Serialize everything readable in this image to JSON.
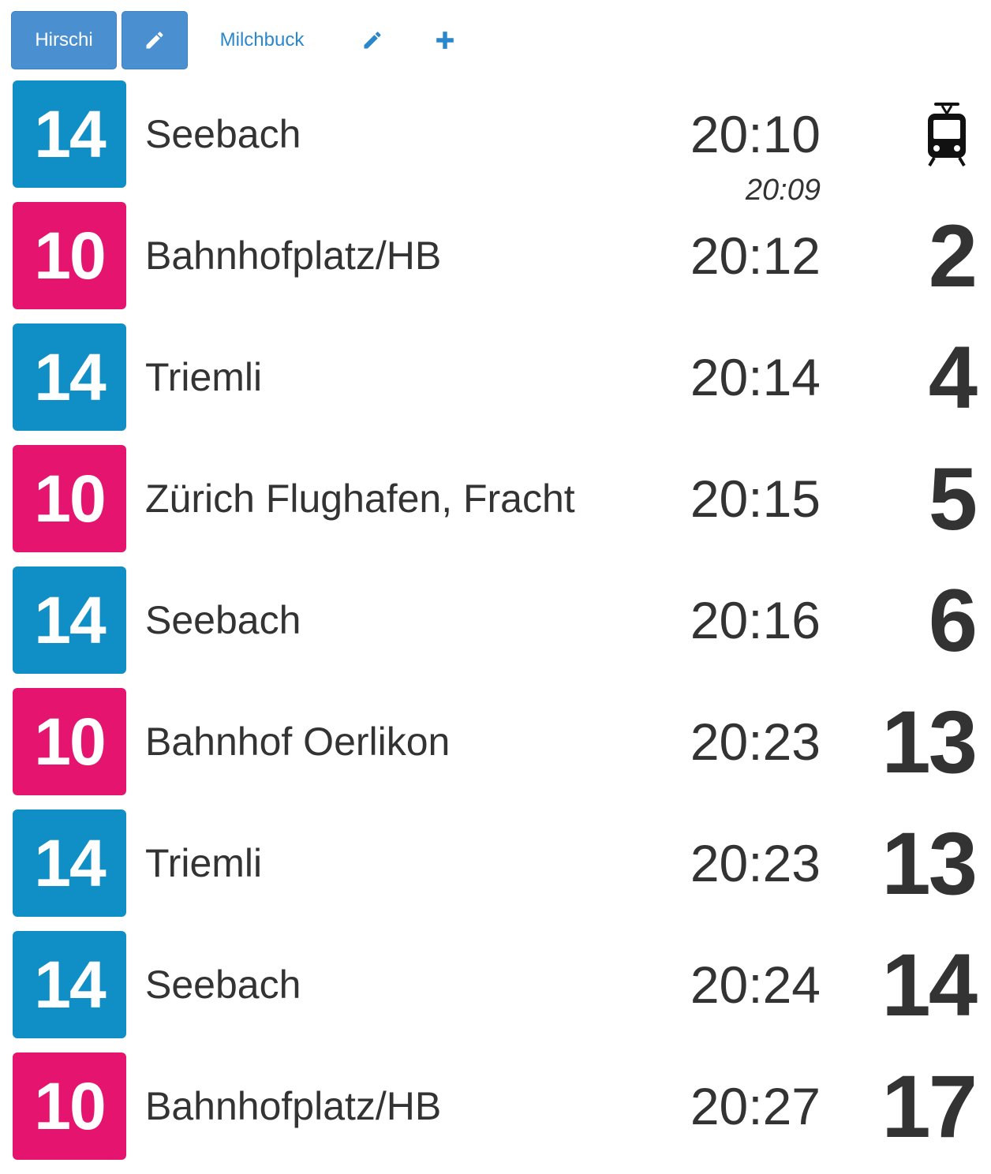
{
  "toolbar": {
    "tabs": [
      {
        "label": "Hirschi",
        "active": true
      },
      {
        "label": "Milchbuck",
        "active": false
      }
    ],
    "edit_icon": "pencil-icon",
    "add_icon": "plus-icon"
  },
  "colors": {
    "line_14": "#0f8fc5",
    "line_10": "#e5156f",
    "active_tab": "#4a90d0",
    "link": "#2a87cc"
  },
  "departures": [
    {
      "line": "14",
      "destination": "Seebach",
      "time": "20:10",
      "scheduled": "20:09",
      "minutes": "",
      "status_icon": "tram-icon"
    },
    {
      "line": "10",
      "destination": "Bahnhofplatz/HB",
      "time": "20:12",
      "scheduled": "",
      "minutes": "2"
    },
    {
      "line": "14",
      "destination": "Triemli",
      "time": "20:14",
      "scheduled": "",
      "minutes": "4"
    },
    {
      "line": "10",
      "destination": "Zürich Flughafen, Fracht",
      "time": "20:15",
      "scheduled": "",
      "minutes": "5"
    },
    {
      "line": "14",
      "destination": "Seebach",
      "time": "20:16",
      "scheduled": "",
      "minutes": "6"
    },
    {
      "line": "10",
      "destination": "Bahnhof Oerlikon",
      "time": "20:23",
      "scheduled": "",
      "minutes": "13"
    },
    {
      "line": "14",
      "destination": "Triemli",
      "time": "20:23",
      "scheduled": "",
      "minutes": "13"
    },
    {
      "line": "14",
      "destination": "Seebach",
      "time": "20:24",
      "scheduled": "",
      "minutes": "14"
    },
    {
      "line": "10",
      "destination": "Bahnhofplatz/HB",
      "time": "20:27",
      "scheduled": "",
      "minutes": "17"
    }
  ]
}
